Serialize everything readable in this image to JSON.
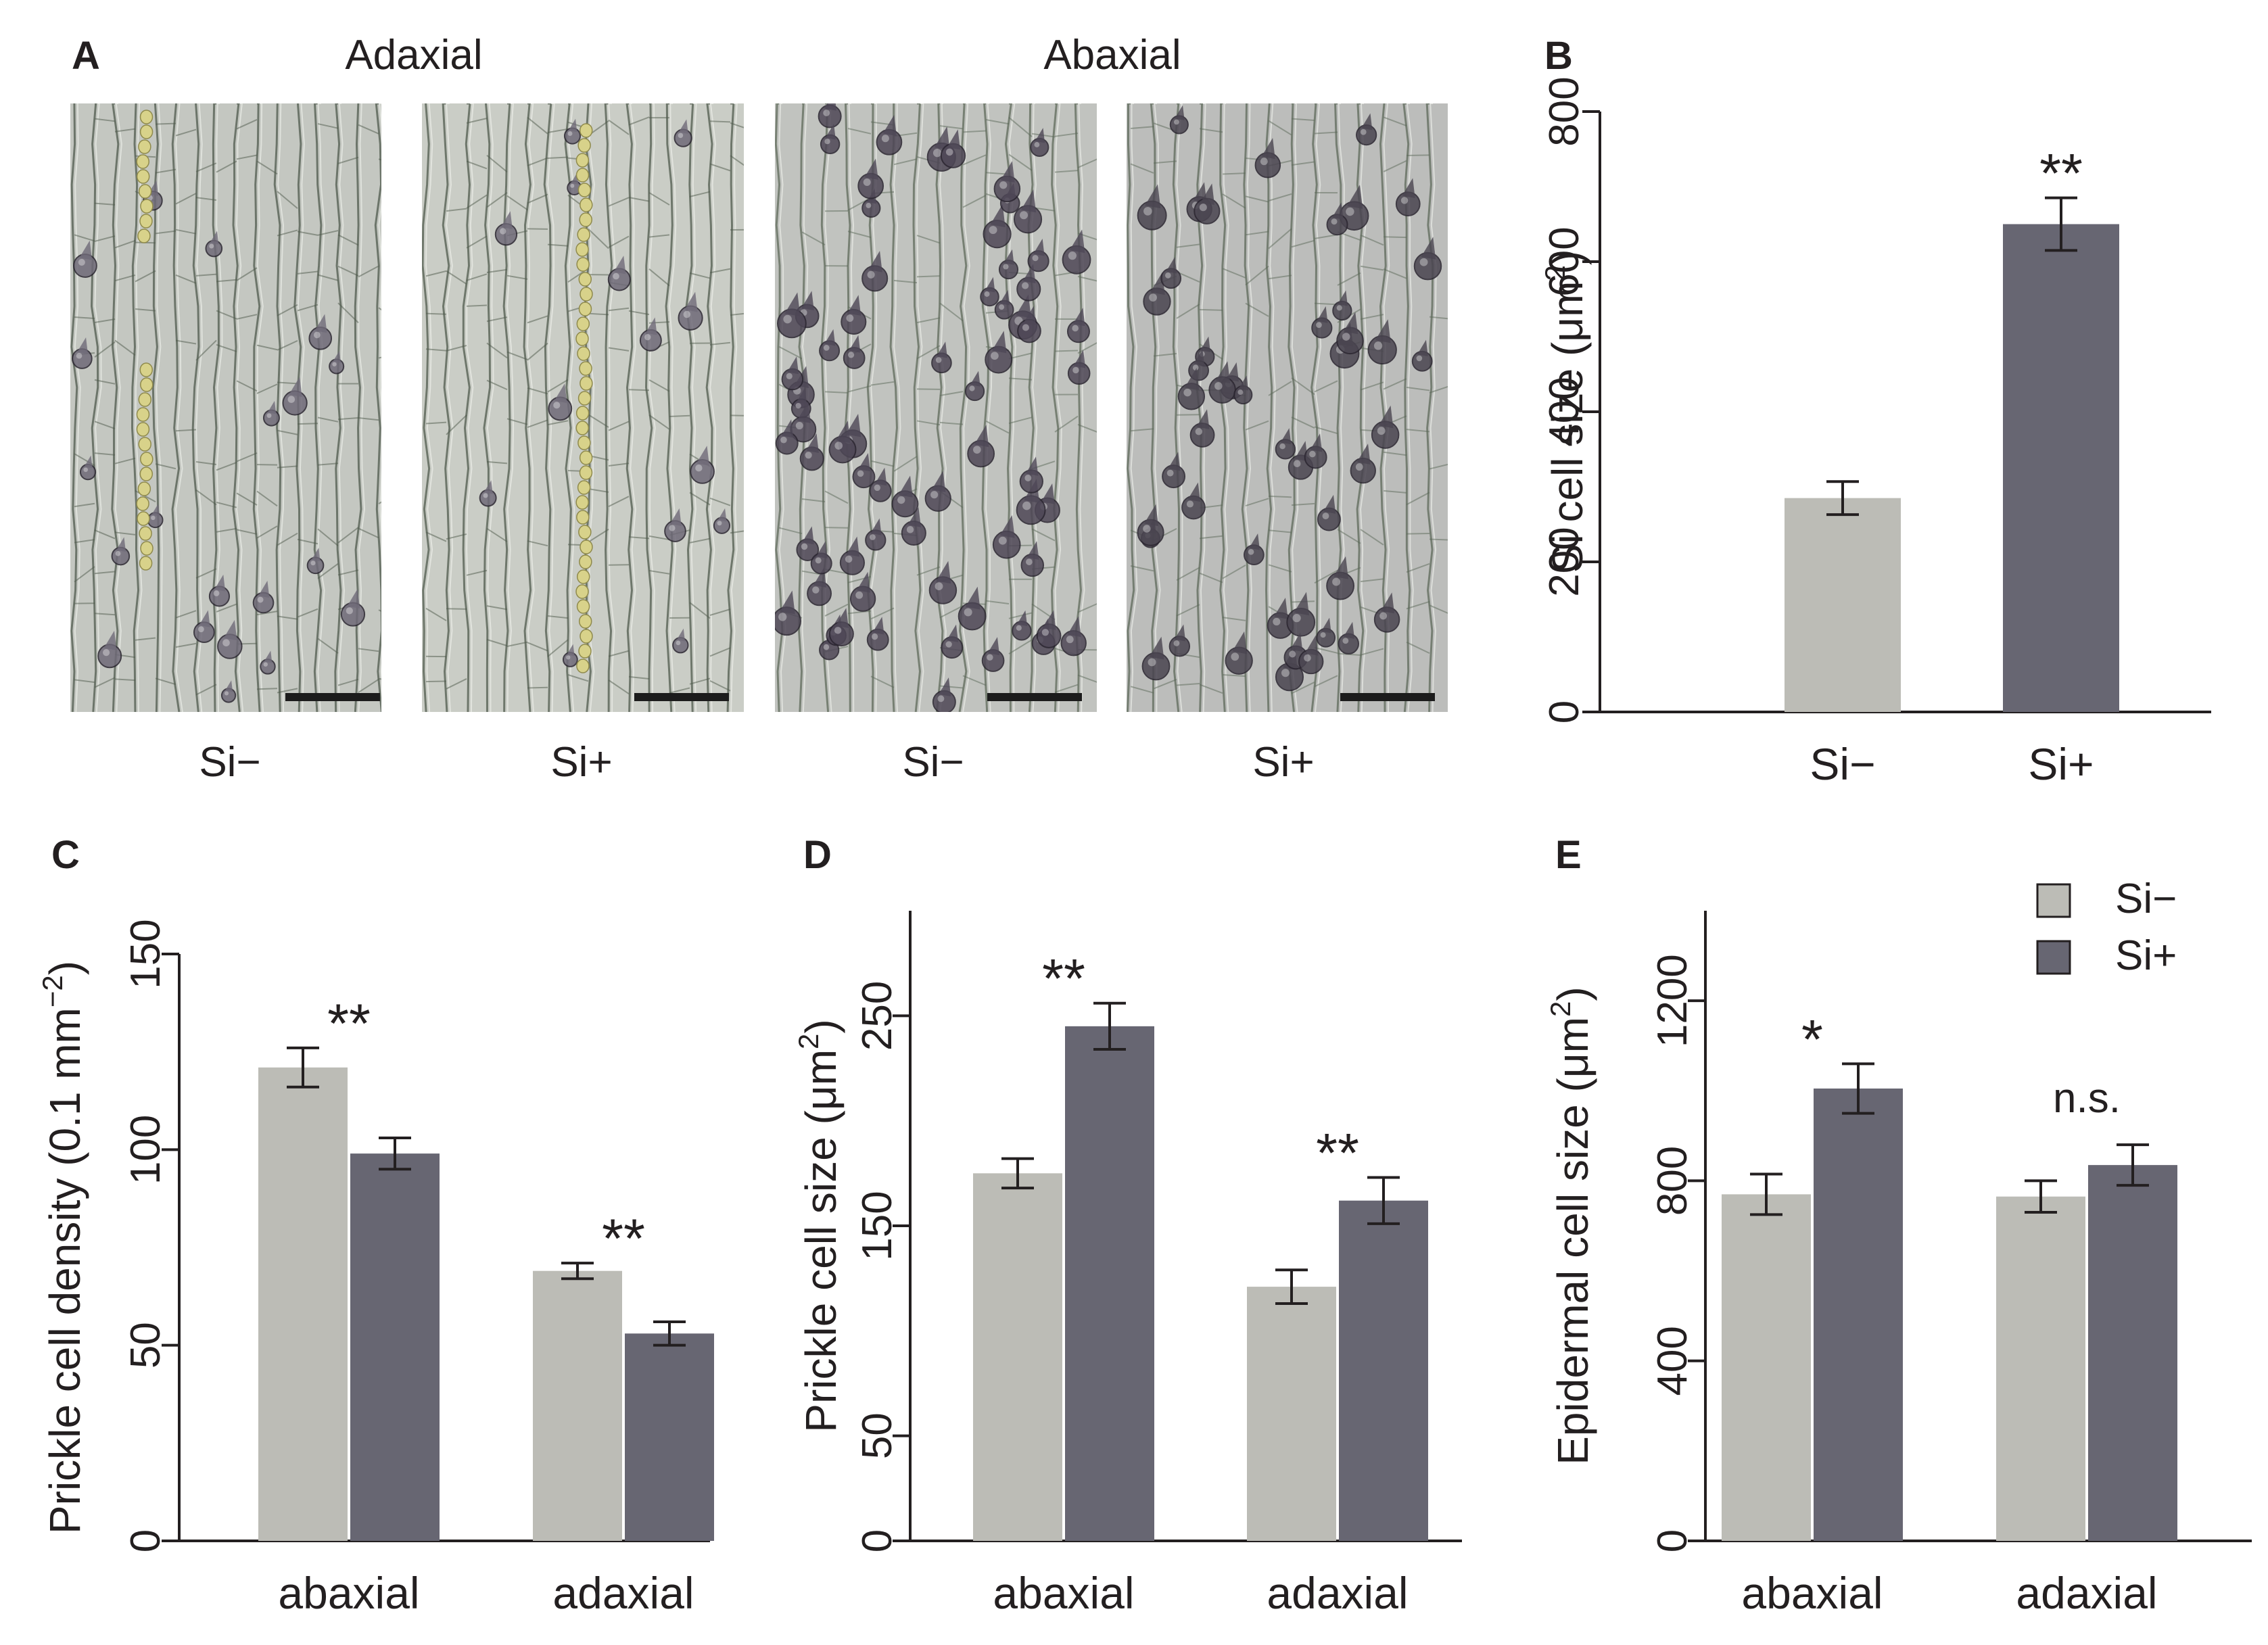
{
  "panel_letters": {
    "a": "A",
    "b": "B",
    "c": "C",
    "d": "D",
    "e": "E"
  },
  "panel_a": {
    "side_titles": [
      "Adaxial",
      "Abaxial"
    ],
    "image_labels": [
      "Si−",
      "Si+",
      "Si−",
      "Si+"
    ],
    "images": [
      {
        "name": "adaxial-si-minus",
        "bg": "#c4c7c1",
        "line": "#4f5a4c",
        "cell": "#6f6a78",
        "cell_count": 20,
        "silica_rows": 1
      },
      {
        "name": "adaxial-si-plus",
        "bg": "#cacdc6",
        "line": "#4f5a4c",
        "cell": "#6f6a78",
        "cell_count": 14,
        "silica_rows": 1
      },
      {
        "name": "abaxial-si-minus",
        "bg": "#c1c3bf",
        "line": "#5d6a5a",
        "cell": "#4e4756",
        "cell_count": 70,
        "silica_rows": 0
      },
      {
        "name": "abaxial-si-plus",
        "bg": "#bcbdbb",
        "line": "#5d6a5a",
        "cell": "#4a4550",
        "cell_count": 48,
        "silica_rows": 0
      }
    ],
    "silica_color": "#d8d28a",
    "scale_bar_color": "#1c1c1c"
  },
  "legend": {
    "items": [
      "Si−",
      "Si+"
    ]
  },
  "colors": {
    "si_minus": "#bcbcb6",
    "si_plus": "#676672",
    "axis": "#231f20"
  },
  "chart_data": [
    {
      "panel": "B",
      "type": "bar",
      "categories": [
        "Si−",
        "Si+"
      ],
      "values": [
        285,
        650
      ],
      "errors": [
        22,
        35
      ],
      "ylabel_main": "Si cell size (μm",
      "ylabel_sup": "2",
      "ylabel_close": ")",
      "ylim": [
        0,
        800
      ],
      "yticks": [
        0,
        200,
        400,
        600,
        800
      ],
      "annotations": [
        {
          "text": "**",
          "category_index": 1
        }
      ]
    },
    {
      "panel": "C",
      "type": "bar",
      "categories": [
        "abaxial",
        "adaxial"
      ],
      "series": [
        {
          "name": "Si−",
          "values": [
            121,
            69
          ],
          "errors": [
            5,
            2
          ]
        },
        {
          "name": "Si+",
          "values": [
            99,
            53
          ],
          "errors": [
            4,
            3
          ]
        }
      ],
      "ylabel_main": "Prickle cell density (0.1 mm",
      "ylabel_sup": "−2",
      "ylabel_close": ")",
      "ylim": [
        0,
        150
      ],
      "yticks": [
        0,
        50,
        100,
        150
      ],
      "annotations": [
        {
          "text": "**",
          "category_index": 0
        },
        {
          "text": "**",
          "category_index": 1
        }
      ]
    },
    {
      "panel": "D",
      "type": "bar",
      "categories": [
        "abaxial",
        "adaxial"
      ],
      "series": [
        {
          "name": "Si−",
          "values": [
            175,
            121
          ],
          "errors": [
            7,
            8
          ]
        },
        {
          "name": "Si+",
          "values": [
            245,
            162
          ],
          "errors": [
            11,
            11
          ]
        }
      ],
      "ylabel_main": "Prickle cell size (μm",
      "ylabel_sup": "2",
      "ylabel_close": ")",
      "ylim": [
        0,
        300
      ],
      "yticks": [
        0,
        50,
        150,
        250
      ],
      "annotations": [
        {
          "text": "**",
          "category_index": 0
        },
        {
          "text": "**",
          "category_index": 1
        }
      ]
    },
    {
      "panel": "E",
      "type": "bar",
      "categories": [
        "abaxial",
        "adaxial"
      ],
      "series": [
        {
          "name": "Si−",
          "values": [
            770,
            765
          ],
          "errors": [
            45,
            35
          ]
        },
        {
          "name": "Si+",
          "values": [
            1005,
            835
          ],
          "errors": [
            55,
            45
          ]
        }
      ],
      "ylabel_main": "Epidermal cell size (μm",
      "ylabel_sup": "2",
      "ylabel_close": ")",
      "ylim": [
        0,
        1400
      ],
      "yticks": [
        0,
        400,
        800,
        1200
      ],
      "annotations": [
        {
          "text": "*",
          "category_index": 0
        },
        {
          "text": "n.s.",
          "category_index": 1
        }
      ],
      "legend": "top-right"
    }
  ]
}
